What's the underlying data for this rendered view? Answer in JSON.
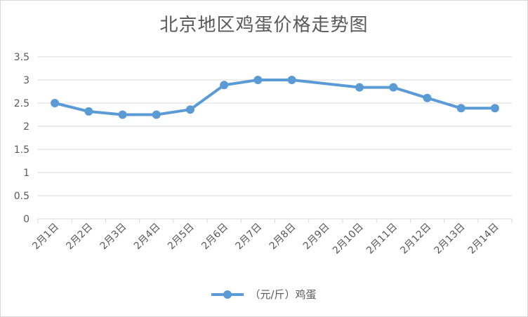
{
  "chart_data": {
    "type": "line",
    "title": "北京地区鸡蛋价格走势图",
    "xlabel": "",
    "ylabel": "",
    "categories": [
      "2月1日",
      "2月2日",
      "2月3日",
      "2月4日",
      "2月5日",
      "2月6日",
      "2月7日",
      "2月8日",
      "2月9日",
      "2月10日",
      "2月11日",
      "2月12日",
      "2月13日",
      "2月14日"
    ],
    "series": [
      {
        "name": "（元/斤）鸡蛋",
        "values": [
          2.5,
          2.32,
          2.25,
          2.25,
          2.36,
          2.89,
          3.0,
          3.0,
          null,
          2.84,
          2.84,
          2.61,
          2.39,
          2.39
        ]
      }
    ],
    "ylim": [
      0,
      3.5
    ],
    "yticks": [
      0,
      0.5,
      1,
      1.5,
      2,
      2.5,
      3,
      3.5
    ],
    "ytick_labels": [
      "0",
      "0.5",
      "1",
      "1.5",
      "2",
      "2.5",
      "3",
      "3.5"
    ],
    "grid": true,
    "legend_position": "bottom",
    "line_connects_gaps": true,
    "colors": {
      "series": "#5b9bd5",
      "grid": "#d9d9d9",
      "text": "#595959"
    }
  }
}
